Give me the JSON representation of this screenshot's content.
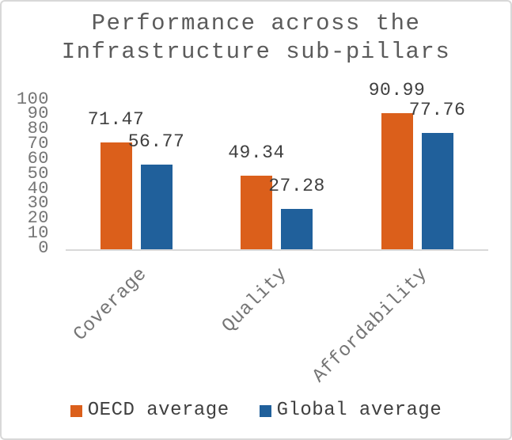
{
  "title": {
    "line1": "Performance across the",
    "line2": "Infrastructure sub-pillars"
  },
  "chart_data": {
    "type": "bar",
    "title": "Performance across the Infrastructure sub-pillars",
    "categories": [
      "Coverage",
      "Quality",
      "Affordability"
    ],
    "series": [
      {
        "name": "OECD average",
        "color": "#db5f1b",
        "values": [
          71.47,
          49.34,
          90.99
        ]
      },
      {
        "name": "Global average",
        "color": "#20609b",
        "values": [
          56.77,
          27.28,
          77.76
        ]
      }
    ],
    "data_labels": [
      [
        "71.47",
        "49.34",
        "90.99"
      ],
      [
        "56.77",
        "27.28",
        "77.76"
      ]
    ],
    "xlabel": "",
    "ylabel": "",
    "ylim": [
      0,
      100
    ],
    "yticks": [
      0,
      10,
      20,
      30,
      40,
      50,
      60,
      70,
      80,
      90,
      100
    ],
    "grid": false,
    "legend_position": "bottom",
    "axis_line_color": "#d9d9d9"
  }
}
